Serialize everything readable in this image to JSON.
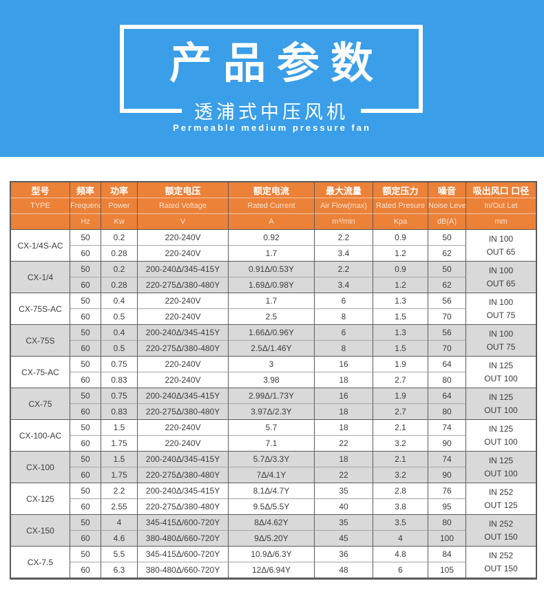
{
  "banner": {
    "title": "产品参数",
    "subtitle": "透浦式中压风机",
    "subtitle_en": "Permeable medium pressure fan",
    "bg_color": "#3a9ee8"
  },
  "table": {
    "header_bg": "#ec8138",
    "stripe_color": "#d9d9d9",
    "border_color": "#5a5a5a",
    "columns": [
      {
        "cn": "型号",
        "en": "TYPE",
        "unit": ""
      },
      {
        "cn": "频率",
        "en": "Frequency",
        "unit": "Hz"
      },
      {
        "cn": "功率",
        "en": "Power",
        "unit": "Kw"
      },
      {
        "cn": "额定电压",
        "en": "Rated Voltage",
        "unit": "V"
      },
      {
        "cn": "额定电流",
        "en": "Rated Current",
        "unit": "A"
      },
      {
        "cn": "最大流量",
        "en": "Air Flow(max)",
        "unit": "m³/min"
      },
      {
        "cn": "额定压力",
        "en": "Rated Presure",
        "unit": "Kpa"
      },
      {
        "cn": "噪音",
        "en": "Noise Level",
        "unit": "dB(A)"
      },
      {
        "cn": "吸出风口 口径",
        "en": "In/Out Let",
        "unit": "mm"
      }
    ],
    "groups": [
      {
        "model": "CX-1/4S-AC",
        "inout": [
          "IN 100",
          "OUT 65"
        ],
        "rows": [
          [
            "50",
            "0.2",
            "220-240V",
            "0.92",
            "2.2",
            "0.9",
            "50"
          ],
          [
            "60",
            "0.28",
            "220-240V",
            "1.7",
            "3.4",
            "1.2",
            "62"
          ]
        ]
      },
      {
        "model": "CX-1/4",
        "inout": [
          "IN 100",
          "OUT 65"
        ],
        "rows": [
          [
            "50",
            "0.2",
            "200-240Δ/345-415Y",
            "0.91Δ/0.53Y",
            "2.2",
            "0.9",
            "50"
          ],
          [
            "60",
            "0.28",
            "220-275Δ/380-480Y",
            "1.69Δ/0.98Y",
            "3.4",
            "1.2",
            "62"
          ]
        ]
      },
      {
        "model": "CX-75S-AC",
        "inout": [
          "IN 100",
          "OUT 75"
        ],
        "rows": [
          [
            "50",
            "0.4",
            "220-240V",
            "1.7",
            "6",
            "1.3",
            "56"
          ],
          [
            "60",
            "0.5",
            "220-240V",
            "2.5",
            "8",
            "1.5",
            "70"
          ]
        ]
      },
      {
        "model": "CX-75S",
        "inout": [
          "IN 100",
          "OUT 75"
        ],
        "rows": [
          [
            "50",
            "0.4",
            "200-240Δ/345-415Y",
            "1.66Δ/0.96Y",
            "6",
            "1.3",
            "56"
          ],
          [
            "60",
            "0.5",
            "220-275Δ/380-480Y",
            "2.5Δ/1.46Y",
            "8",
            "1.5",
            "70"
          ]
        ]
      },
      {
        "model": "CX-75-AC",
        "inout": [
          "IN 125",
          "OUT 100"
        ],
        "rows": [
          [
            "50",
            "0.75",
            "220-240V",
            "3",
            "16",
            "1.9",
            "64"
          ],
          [
            "60",
            "0.83",
            "220-240V",
            "3.98",
            "18",
            "2.7",
            "80"
          ]
        ]
      },
      {
        "model": "CX-75",
        "inout": [
          "IN 125",
          "OUT 100"
        ],
        "rows": [
          [
            "50",
            "0.75",
            "200-240Δ/345-415Y",
            "2.99Δ/1.73Y",
            "16",
            "1.9",
            "64"
          ],
          [
            "60",
            "0.83",
            "220-275Δ/380-480Y",
            "3.97Δ/2.3Y",
            "18",
            "2.7",
            "80"
          ]
        ]
      },
      {
        "model": "CX-100-AC",
        "inout": [
          "IN 125",
          "OUT 100"
        ],
        "rows": [
          [
            "50",
            "1.5",
            "220-240V",
            "5.7",
            "18",
            "2.1",
            "74"
          ],
          [
            "60",
            "1.75",
            "220-240V",
            "7.1",
            "22",
            "3.2",
            "90"
          ]
        ]
      },
      {
        "model": "CX-100",
        "inout": [
          "IN 125",
          "OUT 100"
        ],
        "rows": [
          [
            "50",
            "1.5",
            "200-240Δ/345-415Y",
            "5.7Δ/3.3Y",
            "18",
            "2.1",
            "74"
          ],
          [
            "60",
            "1.75",
            "220-275Δ/380-480Y",
            "7Δ/4.1Y",
            "22",
            "3.2",
            "90"
          ]
        ]
      },
      {
        "model": "CX-125",
        "inout": [
          "IN 252",
          "OUT 125"
        ],
        "rows": [
          [
            "50",
            "2.2",
            "200-240Δ/345-415Y",
            "8.1Δ/4.7Y",
            "35",
            "2.8",
            "76"
          ],
          [
            "60",
            "2.55",
            "220-275Δ/380-480Y",
            "9.5Δ/5.5Y",
            "40",
            "3.8",
            "95"
          ]
        ]
      },
      {
        "model": "CX-150",
        "inout": [
          "IN 252",
          "OUT 150"
        ],
        "rows": [
          [
            "50",
            "4",
            "345-415Δ/600-720Y",
            "8Δ/4.62Y",
            "35",
            "3.5",
            "80"
          ],
          [
            "60",
            "4.6",
            "380-480Δ/660-720Y",
            "9Δ/5.20Y",
            "45",
            "4",
            "100"
          ]
        ]
      },
      {
        "model": "CX-7.5",
        "inout": [
          "IN 252",
          "OUT 150"
        ],
        "rows": [
          [
            "50",
            "5.5",
            "345-415Δ/600-720Y",
            "10.9Δ/6.3Y",
            "36",
            "4.8",
            "84"
          ],
          [
            "60",
            "6.3",
            "380-480Δ/660-720Y",
            "12Δ/6.94Y",
            "48",
            "6",
            "105"
          ]
        ]
      }
    ]
  }
}
